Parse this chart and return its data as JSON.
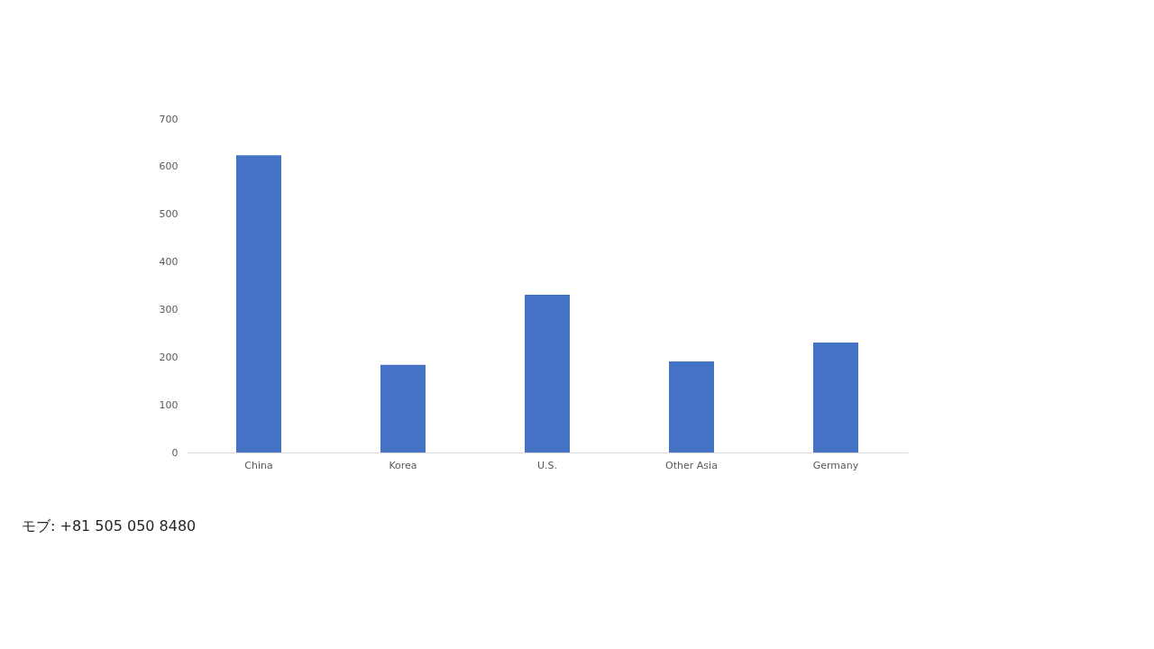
{
  "chart_data": {
    "type": "bar",
    "categories": [
      "China",
      "Korea",
      "U.S.",
      "Other Asia",
      "Germany"
    ],
    "values": [
      624,
      184,
      331,
      191,
      231
    ],
    "color": "#4472c4",
    "ylim": [
      0,
      700
    ],
    "yticks": [
      0,
      100,
      200,
      300,
      400,
      500,
      600,
      700
    ],
    "grid": false,
    "annotations": [
      "モブ: +81 505 050 8480"
    ]
  }
}
